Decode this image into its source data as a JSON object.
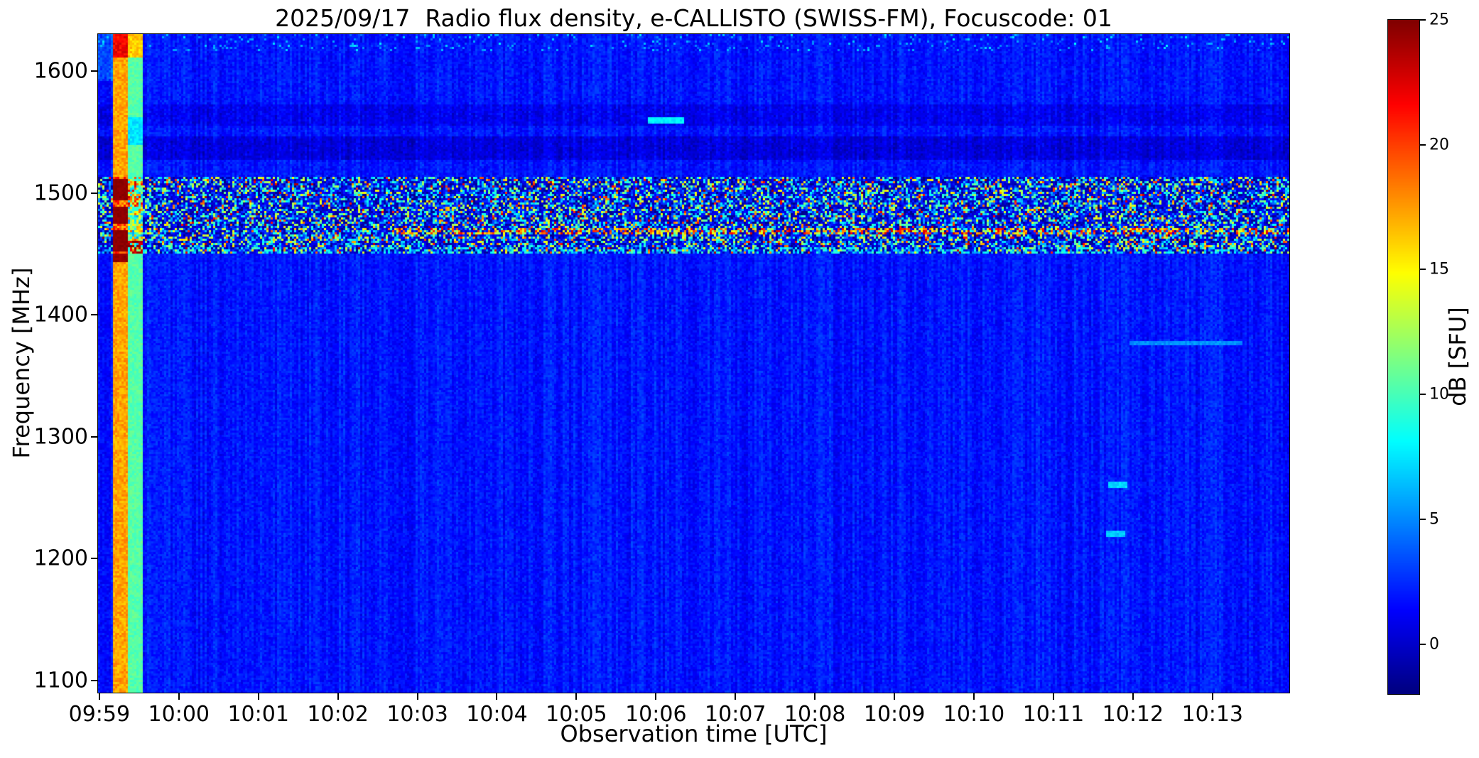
{
  "chart_data": {
    "type": "heatmap",
    "subtype": "radio-spectrogram",
    "title": "2025/09/17  Radio flux density, e-CALLISTO (SWISS-FM), Focuscode: 01",
    "xlabel": "Observation time [UTC]",
    "ylabel": "Frequency [MHz]",
    "colorbar_label": "dB [SFU]",
    "colormap": "jet",
    "grid": false,
    "legend": "none",
    "value_range_db": [
      -2,
      25
    ],
    "colorbar_ticks": [
      25,
      20,
      15,
      10,
      5,
      0
    ],
    "time_axis": {
      "range_s": [
        -1,
        898
      ],
      "reference": "seconds after 09:59:00 UTC",
      "ticks": [
        {
          "label": "09:59",
          "s": 0
        },
        {
          "label": "10:00",
          "s": 60
        },
        {
          "label": "10:01",
          "s": 120
        },
        {
          "label": "10:02",
          "s": 180
        },
        {
          "label": "10:03",
          "s": 240
        },
        {
          "label": "10:04",
          "s": 300
        },
        {
          "label": "10:05",
          "s": 360
        },
        {
          "label": "10:06",
          "s": 420
        },
        {
          "label": "10:07",
          "s": 480
        },
        {
          "label": "10:08",
          "s": 540
        },
        {
          "label": "10:09",
          "s": 600
        },
        {
          "label": "10:10",
          "s": 660
        },
        {
          "label": "10:11",
          "s": 720
        },
        {
          "label": "10:12",
          "s": 780
        },
        {
          "label": "10:13",
          "s": 840
        }
      ]
    },
    "freq_axis": {
      "range_mhz": [
        1090,
        1630.5
      ],
      "ticks_mhz": [
        1600,
        1500,
        1400,
        1300,
        1200,
        1100
      ]
    },
    "background": {
      "mean_db": 1.9,
      "noise_db": 1.7
    },
    "features": {
      "calibration": {
        "blue_lead_s": [
          -1,
          10
        ],
        "warm_stripe_s": [
          10,
          21
        ],
        "green_stripe_s": [
          21,
          33
        ],
        "warm_level_db": 17.3,
        "green_level_db": 10.4
      },
      "rfi_band": {
        "freq_mhz": [
          1450,
          1513
        ],
        "description": "broadband speckle interference band"
      },
      "dark_bands": [
        {
          "freq_mhz": [
            1555,
            1572
          ],
          "delta_db": -0.9
        },
        {
          "freq_mhz": [
            1527,
            1547
          ],
          "delta_db": -1.4
        }
      ],
      "transients": [
        {
          "time_s": [
            414,
            442
          ],
          "freq_mhz": 1560,
          "level_db": 7
        },
        {
          "time_s": [
            777,
            863
          ],
          "freq_mhz": 1377,
          "level_db": 4.5
        },
        {
          "time_s": [
            761,
            775
          ],
          "freq_mhz": 1260,
          "level_db": 6.5
        },
        {
          "time_s": [
            759,
            774
          ],
          "freq_mhz": 1220,
          "level_db": 6
        }
      ]
    }
  }
}
